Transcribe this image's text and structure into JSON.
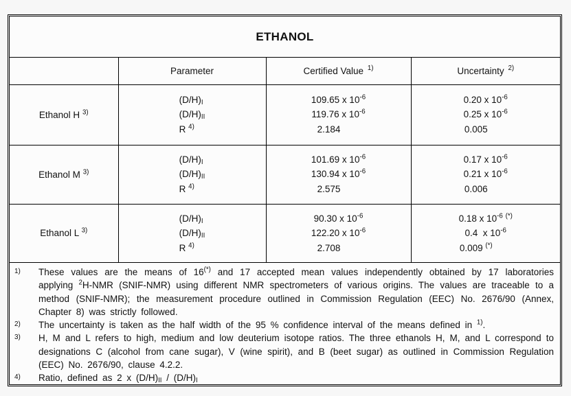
{
  "document": {
    "title": "ETHANOL",
    "headers": {
      "row_label": "",
      "parameter": "Parameter",
      "certified_value": "Certified Value ^{1)}",
      "uncertainty": "Uncertainty ^{2)}"
    },
    "rows": [
      {
        "label": "Ethanol H ^{3)}",
        "parameters": [
          "(D/H)_{I}",
          "(D/H)_{II}",
          "R ^{4)}"
        ],
        "certified_values": [
          "109.65 x 10^{-6}",
          "119.76 x 10^{-6}",
          "2.184"
        ],
        "uncertainties": [
          "0.20 x 10^{-6}",
          "0.25 x 10^{-6}",
          "0.005"
        ]
      },
      {
        "label": "Ethanol M ^{3)}",
        "parameters": [
          "(D/H)_{I}",
          "(D/H)_{II}",
          "R ^{4)}"
        ],
        "certified_values": [
          "101.69 x 10^{-6}",
          "130.94 x 10^{-6}",
          "2.575"
        ],
        "uncertainties": [
          "0.17 x 10^{-6}",
          "0.21 x 10^{-6}",
          "0.006"
        ]
      },
      {
        "label": "Ethanol L ^{3)}",
        "parameters": [
          "(D/H)_{I}",
          "(D/H)_{II}",
          "R ^{4)}"
        ],
        "certified_values": [
          "90.30 x 10^{-6}",
          "122.20 x 10^{-6}",
          "2.708"
        ],
        "uncertainties": [
          "0.18 x 10^{-6} ^{(*)}",
          "0.4  x 10^{-6}",
          "0.009 ^{(*)}"
        ]
      }
    ],
    "footnotes": [
      {
        "marker": "1)",
        "text": "These values are the means of 16^{(*)} and 17 accepted mean values independently obtained by 17 laboratories applying ^{2}H-NMR (SNIF-NMR) using different NMR spectrometers of various origins. The values are traceable to a method (SNIF-NMR); the measurement procedure outlined in Commission Regulation (EEC) No. 2676/90 (Annex, Chapter 8) was strictly followed."
      },
      {
        "marker": "2)",
        "text": "The uncertainty is taken as the half width of the 95 % confidence interval of the means defined in ^{1)}."
      },
      {
        "marker": "3)",
        "text": "H, M and L refers to high, medium and low deuterium isotope ratios. The three ethanols H, M, and L correspond to designations C (alcohol from cane sugar), V (wine spirit), and B (beet sugar) as outlined in Commission Regulation (EEC) No. 2676/90, clause 4.2.2."
      },
      {
        "marker": "4)",
        "text": "Ratio, defined as 2 x (D/H)_{II} / (D/H)_{I}"
      }
    ],
    "colors": {
      "border": "#000000",
      "page_background": "#f7f7f7",
      "table_background": "#fcfcfc",
      "text": "#111111"
    }
  }
}
